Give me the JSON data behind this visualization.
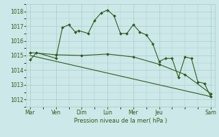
{
  "background_color": "#cce8e8",
  "grid_color": "#aacccc",
  "line_color": "#2d5a1b",
  "xlabel": "Pression niveau de la mer( hPa )",
  "ylim": [
    1011.5,
    1018.5
  ],
  "yticks": [
    1012,
    1013,
    1014,
    1015,
    1016,
    1017,
    1018
  ],
  "day_labels": [
    "Mar",
    "Ven",
    "Dim",
    "Lun",
    "Mer",
    "Jeu",
    "Sam"
  ],
  "day_positions": [
    0,
    2,
    4,
    6,
    8,
    10,
    14
  ],
  "xlim": [
    -0.3,
    14.3
  ],
  "line1_x": [
    0,
    0.5,
    2,
    2.5,
    3,
    3.5,
    3.75,
    4.5,
    5,
    5.5,
    6,
    6.5,
    7,
    7.5,
    8,
    8.5,
    9,
    9.5,
    10,
    10.5,
    11,
    11.5,
    12,
    12.5,
    13,
    13.5,
    14
  ],
  "line1_y": [
    1014.7,
    1015.2,
    1014.8,
    1016.9,
    1017.1,
    1016.6,
    1016.7,
    1016.5,
    1017.4,
    1017.9,
    1018.1,
    1017.7,
    1016.5,
    1016.5,
    1017.1,
    1016.6,
    1016.4,
    1015.8,
    1014.6,
    1014.8,
    1014.8,
    1013.5,
    1014.9,
    1014.8,
    1013.2,
    1013.1,
    1012.2
  ],
  "line2_x": [
    0,
    2,
    4,
    6,
    8,
    10,
    12,
    14
  ],
  "line2_y": [
    1015.2,
    1015.05,
    1015.0,
    1015.1,
    1014.9,
    1014.4,
    1013.7,
    1012.4
  ],
  "line3_x": [
    0,
    14
  ],
  "line3_y": [
    1015.0,
    1012.2
  ],
  "tick_fontsize": 5.5,
  "xlabel_fontsize": 6.0,
  "linewidth": 0.8,
  "markersize": 2.0
}
